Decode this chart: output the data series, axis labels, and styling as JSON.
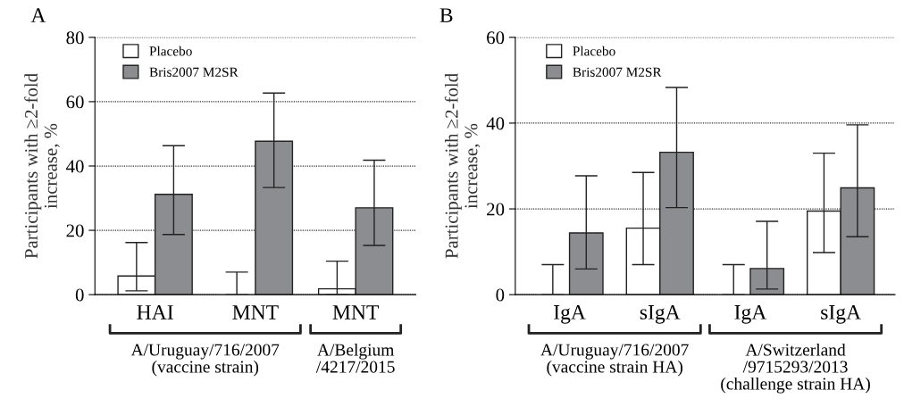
{
  "chart_data": [
    {
      "type": "bar",
      "title": "A",
      "ylabel": "Participants with ≥2-fold\nincrease, %",
      "categories": [
        "HAI",
        "MNT",
        "MNT"
      ],
      "ylim": [
        0,
        80
      ],
      "yticks": [
        0,
        20,
        40,
        60,
        80
      ],
      "grid": "y",
      "legend": "top left",
      "series": [
        {
          "name": "Placebo",
          "color": "#ffffff",
          "values": [
            5.8,
            0,
            1.8
          ],
          "errors": [
            [
              1.2,
              16.2
            ],
            [
              0,
              7
            ],
            [
              0,
              10.4
            ]
          ]
        },
        {
          "name": "Bris2007 M2SR",
          "color": "#8c8d90",
          "values": [
            31.2,
            47.7,
            27
          ],
          "errors": [
            [
              18.7,
              46.3
            ],
            [
              33.3,
              62.7
            ],
            [
              15.3,
              41.8
            ]
          ]
        }
      ],
      "annotations": [
        "A/Uruguay/716/2007\n(vaccine strain)",
        "A/Belgium\n/4217/2015"
      ]
    },
    {
      "type": "bar",
      "title": "B",
      "ylabel": "Participants with ≥2-fold\nincrease, %",
      "categories": [
        "IgA",
        "sIgA",
        "IgA",
        "sIgA"
      ],
      "ylim": [
        0,
        60
      ],
      "yticks": [
        0,
        20,
        40,
        60
      ],
      "grid": "y",
      "legend": "top left",
      "series": [
        {
          "name": "Placebo",
          "color": "#ffffff",
          "values": [
            0,
            15.5,
            0,
            19.5
          ],
          "errors": [
            [
              0,
              7
            ],
            [
              7,
              28.5
            ],
            [
              0,
              7
            ],
            [
              9.8,
              33
            ]
          ]
        },
        {
          "name": "Bris2007 M2SR",
          "color": "#8c8d90",
          "values": [
            14.4,
            33.2,
            6.1,
            24.9
          ],
          "errors": [
            [
              6,
              27.7
            ],
            [
              20.3,
              48.3
            ],
            [
              1.3,
              17.1
            ],
            [
              13.5,
              39.6
            ]
          ]
        }
      ],
      "annotations": [
        "A/Uruguay/716/2007\n(vaccine strain HA)",
        "A/Switzerland\n/9715293/2013\n(challenge strain HA)"
      ]
    }
  ]
}
